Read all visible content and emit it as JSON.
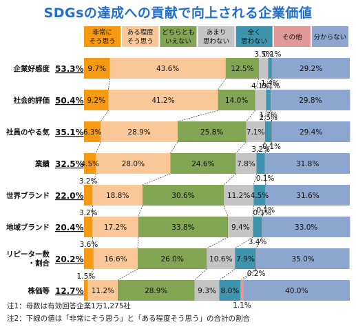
{
  "title": "SDGsの達成への貢献で向上される企業価値",
  "notes": [
    "注1：母数は有効回答企業1万1,275社",
    "注2：下線の値は「非常にそう思う」と「ある程度そう思う」の合計の割合"
  ],
  "chart_data": {
    "type": "bar",
    "orientation": "horizontal-stacked-100",
    "series": [
      {
        "name": "非常にそう思う",
        "label_lines": [
          "非常に",
          "そう思う"
        ],
        "color": "#f59a12",
        "values": [
          9.7,
          9.2,
          6.3,
          4.5,
          3.2,
          3.2,
          3.6,
          1.5
        ]
      },
      {
        "name": "ある程度そう思う",
        "label_lines": [
          "ある程度",
          "そう思う"
        ],
        "color": "#fac898",
        "values": [
          43.6,
          41.2,
          28.9,
          28.0,
          18.8,
          17.2,
          16.6,
          11.2
        ]
      },
      {
        "name": "どちらともいえない",
        "label_lines": [
          "どちらとも",
          "いえない"
        ],
        "color": "#82a553",
        "values": [
          12.5,
          14.0,
          25.8,
          24.6,
          30.6,
          33.8,
          26.0,
          28.9
        ]
      },
      {
        "name": "あまり思わない",
        "label_lines": [
          "あまり",
          "思わない"
        ],
        "color": "#c4c4c4",
        "values": [
          3.5,
          4.1,
          7.1,
          7.8,
          11.2,
          9.4,
          10.6,
          9.3
        ]
      },
      {
        "name": "全く思わない",
        "label_lines": [
          "全く",
          "思わない"
        ],
        "color": "#3e93ad",
        "values": [
          1.4,
          1.7,
          2.5,
          3.2,
          4.5,
          3.4,
          7.9,
          8.0
        ]
      },
      {
        "name": "その他",
        "label_lines": [
          "その他"
        ],
        "color": "#e09898",
        "values": [
          0.1,
          0.1,
          0.1,
          0.1,
          0.1,
          0.1,
          0.2,
          1.1
        ]
      },
      {
        "name": "分からない",
        "label_lines": [
          "分からない"
        ],
        "color": "#8da6cf",
        "values": [
          29.2,
          29.8,
          29.4,
          31.8,
          31.6,
          33.0,
          35.0,
          40.0
        ]
      }
    ],
    "categories": [
      {
        "label_lines": [
          "企業好感度"
        ],
        "total": "53.3%"
      },
      {
        "label_lines": [
          "社会的評価"
        ],
        "total": "50.4%"
      },
      {
        "label_lines": [
          "社員のやる気"
        ],
        "total": "35.1%"
      },
      {
        "label_lines": [
          "業績"
        ],
        "total": "32.5%"
      },
      {
        "label_lines": [
          "世界ブランド"
        ],
        "total": "22.0%"
      },
      {
        "label_lines": [
          "地域ブランド"
        ],
        "total": "20.4%"
      },
      {
        "label_lines": [
          "リピーター数",
          "・割合"
        ],
        "total": "20.2%"
      },
      {
        "label_lines": [
          "株価等"
        ],
        "total": "12.7%"
      }
    ],
    "xlim": [
      0,
      100
    ],
    "legend_position": "top",
    "connector_lines": true
  }
}
